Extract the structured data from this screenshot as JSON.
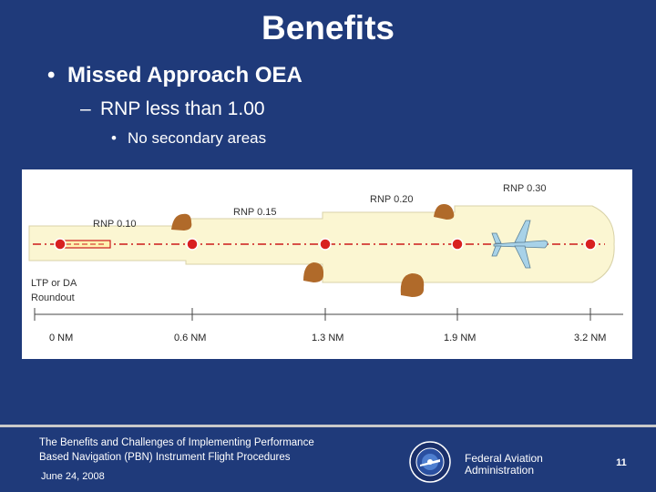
{
  "slide": {
    "title": "Benefits",
    "bullet_1": "Missed Approach OEA",
    "bullet_2": "RNP less than 1.00",
    "bullet_3": "No secondary areas",
    "bullet_glyph": "•",
    "dash_glyph": "–"
  },
  "diagram": {
    "rnp_labels": [
      "RNP 0.10",
      "RNP 0.15",
      "RNP 0.20",
      "RNP 0.30"
    ],
    "start_label_line1": "LTP or DA",
    "start_label_line2": "Roundout",
    "distance_labels": [
      "0 NM",
      "0.6 NM",
      "1.3 NM",
      "1.9 NM",
      "3.2 NM"
    ],
    "area_fill": "#fbf6d2",
    "area_stroke": "#d8d2a8",
    "course_color": "#cc1a1a",
    "aircraft_color": "#a8d2e8"
  },
  "footer": {
    "presentation_title_line1": "The Benefits and Challenges of Implementing Performance",
    "presentation_title_line2": "Based Navigation (PBN) Instrument Flight Procedures",
    "date": "June 24, 2008",
    "agency_line1": "Federal Aviation",
    "agency_line2": "Administration",
    "page_number": "11"
  }
}
